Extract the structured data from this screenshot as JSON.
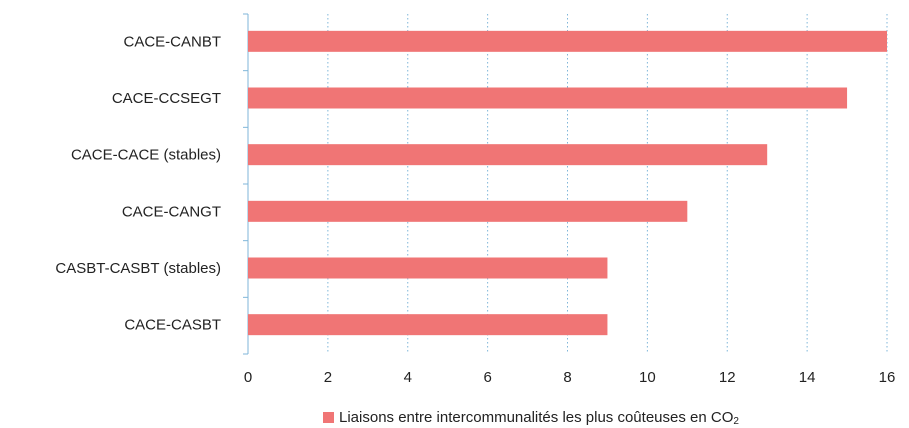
{
  "chart_data": {
    "type": "bar",
    "orientation": "horizontal",
    "categories": [
      "CACE-CANBT",
      "CACE-CCSEGT",
      "CACE-CACE (stables)",
      "CACE-CANGT",
      "CASBT-CASBT (stables)",
      "CACE-CASBT"
    ],
    "series": [
      {
        "name": "Liaisons entre intercommunalités les plus coûteuses en CO",
        "name_subscript": "2",
        "color": "#f07575",
        "values": [
          16,
          15,
          13,
          11,
          9,
          9
        ]
      }
    ],
    "xlim": [
      0,
      16
    ],
    "xticks": [
      0,
      2,
      4,
      6,
      8,
      10,
      12,
      14,
      16
    ],
    "grid": "vertical dotted",
    "legend_position": "bottom"
  }
}
